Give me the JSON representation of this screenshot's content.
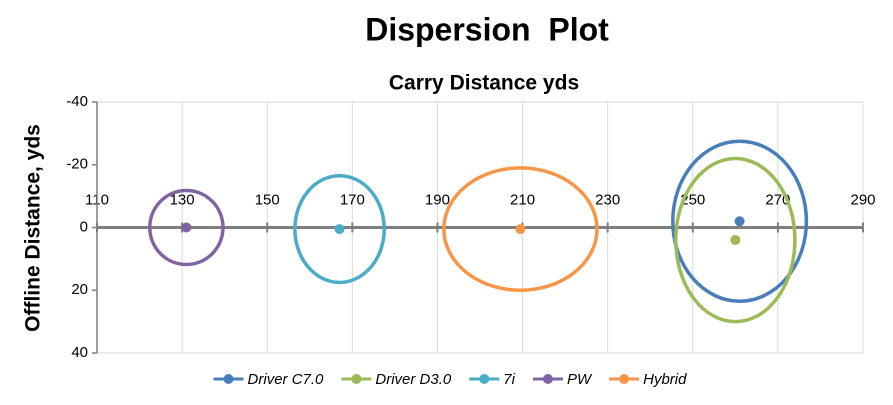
{
  "chart_data": {
    "type": "scatter",
    "title": "Dispersion  Plot",
    "x_label": "Carry Distance yds",
    "y_label": "Offline Distance, yds",
    "xlim": [
      110,
      290
    ],
    "xticks": [
      110,
      130,
      150,
      170,
      190,
      210,
      230,
      250,
      270,
      290
    ],
    "ylim": [
      -40,
      40
    ],
    "yticks": [
      -40,
      -20,
      0,
      20,
      40
    ],
    "y_reversed": true,
    "grid": true,
    "legend": "bottom",
    "series": [
      {
        "name": "Driver C7.0",
        "color": "#4a7ebb",
        "x": [
          261
        ],
        "values": [
          -2
        ],
        "x_radius": 15.7,
        "y_radius": 25.5
      },
      {
        "name": "Driver D3.0",
        "color": "#9bbb59",
        "x": [
          260
        ],
        "values": [
          4
        ],
        "x_radius": 14,
        "y_radius": 26
      },
      {
        "name": "7i",
        "color": "#4bacc6",
        "x": [
          167
        ],
        "values": [
          0.5
        ],
        "x_radius": 10.5,
        "y_radius": 17
      },
      {
        "name": "PW",
        "color": "#8064a2",
        "x": [
          131
        ],
        "values": [
          0
        ],
        "x_radius": 8.6,
        "y_radius": 11.8
      },
      {
        "name": "Hybrid",
        "color": "#f79646",
        "x": [
          209.5
        ],
        "values": [
          0.5
        ],
        "x_radius": 18,
        "y_radius": 19.5
      }
    ]
  }
}
